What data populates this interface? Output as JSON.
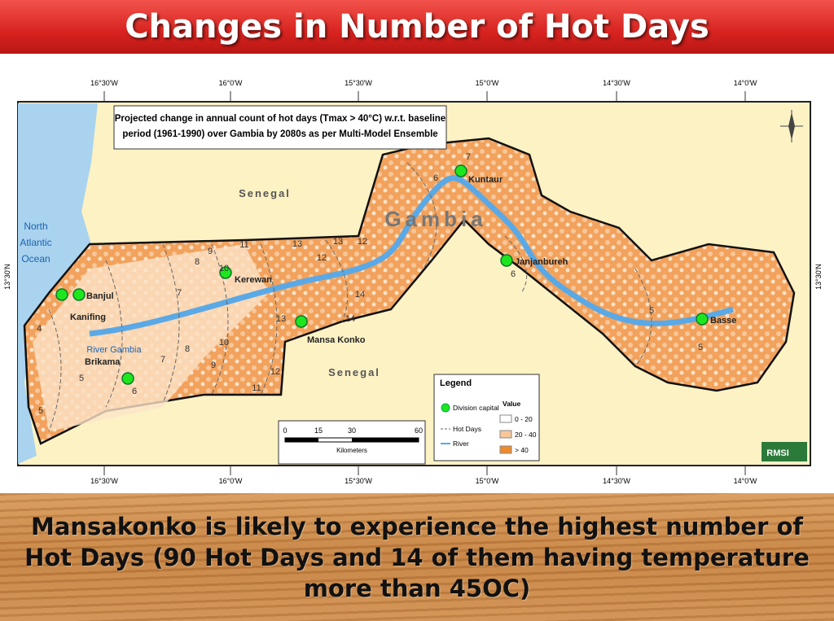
{
  "title": "Changes in Number of Hot Days",
  "map": {
    "longitude_labels": [
      "16°30'W",
      "16°0'W",
      "15°30'W",
      "15°0'W",
      "14°30'W",
      "14°0'W"
    ],
    "latitude_label": "13°30'N",
    "description": [
      "Projected change in annual count of hot days (Tmax > 40°C) w.r.t. baseline",
      "period (1961-1990) over Gambia by 2080s as per Multi-Model Ensemble"
    ],
    "country_labels": [
      "Senegal",
      "Senegal",
      "Gambia"
    ],
    "ocean_label": [
      "North",
      "Atlantic",
      "Ocean"
    ],
    "river_label": "River Gambia",
    "places": [
      "Banjul",
      "Kanifing",
      "Brikama",
      "Kerewan",
      "Mansa Konko",
      "Kuntaur",
      "Janjanbureh",
      "Basse"
    ],
    "contour_labels": [
      "4",
      "5",
      "5",
      "6",
      "7",
      "8",
      "9",
      "10",
      "11",
      "12",
      "13",
      "14",
      "7",
      "8",
      "9",
      "10",
      "11",
      "12",
      "13",
      "14",
      "13",
      "12",
      "6",
      "7",
      "6",
      "5",
      "5"
    ],
    "legend": {
      "title": "Legend",
      "items": [
        "Division capital",
        "Hot Days",
        "River"
      ],
      "value_title": "Value",
      "value_classes": [
        "0 - 20",
        "20 - 40",
        "> 40"
      ]
    },
    "scale": {
      "ticks": [
        "0",
        "15",
        "30",
        "60"
      ],
      "unit": "Kilometers"
    },
    "logo": "RMSI"
  },
  "caption": "Mansakonko is likely to experience the highest number of Hot Days (90 Hot Days and 14 of them having temperature more than 45OC)"
}
